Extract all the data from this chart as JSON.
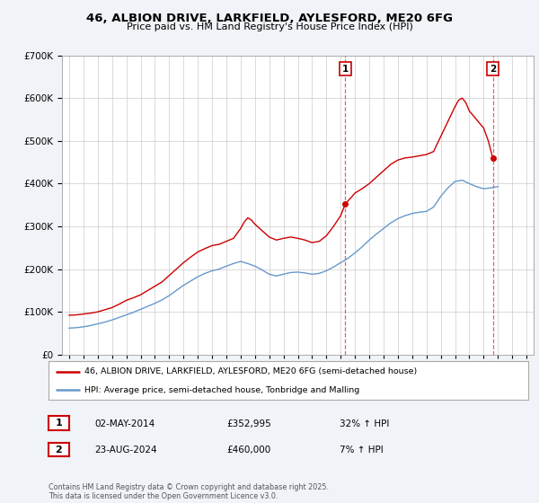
{
  "title": "46, ALBION DRIVE, LARKFIELD, AYLESFORD, ME20 6FG",
  "subtitle": "Price paid vs. HM Land Registry's House Price Index (HPI)",
  "legend_line1": "46, ALBION DRIVE, LARKFIELD, AYLESFORD, ME20 6FG (semi-detached house)",
  "legend_line2": "HPI: Average price, semi-detached house, Tonbridge and Malling",
  "annotation1_label": "1",
  "annotation1_date": "02-MAY-2014",
  "annotation1_price": "£352,995",
  "annotation1_hpi": "32% ↑ HPI",
  "annotation2_label": "2",
  "annotation2_date": "23-AUG-2024",
  "annotation2_price": "£460,000",
  "annotation2_hpi": "7% ↑ HPI",
  "copyright": "Contains HM Land Registry data © Crown copyright and database right 2025.\nThis data is licensed under the Open Government Licence v3.0.",
  "xlim_start": 1994.5,
  "xlim_end": 2027.5,
  "ylim_min": 0,
  "ylim_max": 700000,
  "red_color": "#cc0000",
  "blue_color": "#6699cc",
  "background_color": "#f0f4f8",
  "plot_bg_color": "#ffffff",
  "sale1_year": 2014.33,
  "sale2_year": 2024.64,
  "sale1_price": 352995,
  "sale2_price": 460000,
  "years_red": [
    1995.0,
    1995.5,
    1996.0,
    1996.5,
    1997.0,
    1997.5,
    1998.0,
    1998.5,
    1999.0,
    1999.5,
    2000.0,
    2000.5,
    2001.0,
    2001.5,
    2002.0,
    2002.5,
    2003.0,
    2003.5,
    2004.0,
    2004.5,
    2005.0,
    2005.5,
    2006.0,
    2006.5,
    2007.0,
    2007.25,
    2007.5,
    2007.75,
    2008.0,
    2008.5,
    2009.0,
    2009.5,
    2010.0,
    2010.5,
    2011.0,
    2011.5,
    2012.0,
    2012.5,
    2013.0,
    2013.5,
    2014.0,
    2014.33,
    2014.75,
    2015.0,
    2015.5,
    2016.0,
    2016.5,
    2017.0,
    2017.5,
    2018.0,
    2018.5,
    2019.0,
    2019.5,
    2020.0,
    2020.5,
    2021.0,
    2021.5,
    2022.0,
    2022.25,
    2022.5,
    2022.75,
    2023.0,
    2023.5,
    2024.0,
    2024.33,
    2024.64
  ],
  "red_values": [
    92000,
    93000,
    95000,
    97000,
    100000,
    105000,
    110000,
    118000,
    127000,
    133000,
    140000,
    150000,
    160000,
    170000,
    185000,
    200000,
    215000,
    228000,
    240000,
    248000,
    255000,
    258000,
    265000,
    272000,
    295000,
    310000,
    320000,
    315000,
    305000,
    290000,
    275000,
    268000,
    272000,
    275000,
    272000,
    268000,
    262000,
    265000,
    278000,
    300000,
    325000,
    352995,
    368000,
    378000,
    388000,
    400000,
    415000,
    430000,
    445000,
    455000,
    460000,
    462000,
    465000,
    468000,
    475000,
    510000,
    545000,
    580000,
    595000,
    600000,
    590000,
    570000,
    550000,
    530000,
    500000,
    460000
  ],
  "years_blue": [
    1995.0,
    1995.5,
    1996.0,
    1996.5,
    1997.0,
    1997.5,
    1998.0,
    1998.5,
    1999.0,
    1999.5,
    2000.0,
    2000.5,
    2001.0,
    2001.5,
    2002.0,
    2002.5,
    2003.0,
    2003.5,
    2004.0,
    2004.5,
    2005.0,
    2005.5,
    2006.0,
    2006.5,
    2007.0,
    2007.5,
    2008.0,
    2008.5,
    2009.0,
    2009.5,
    2010.0,
    2010.5,
    2011.0,
    2011.5,
    2012.0,
    2012.5,
    2013.0,
    2013.5,
    2014.0,
    2014.5,
    2015.0,
    2015.5,
    2016.0,
    2016.5,
    2017.0,
    2017.5,
    2018.0,
    2018.5,
    2019.0,
    2019.5,
    2020.0,
    2020.5,
    2021.0,
    2021.5,
    2022.0,
    2022.5,
    2023.0,
    2023.5,
    2024.0,
    2024.5,
    2025.0
  ],
  "blue_values": [
    62000,
    63000,
    65000,
    68000,
    72000,
    76000,
    81000,
    87000,
    93000,
    99000,
    106000,
    113000,
    120000,
    128000,
    138000,
    150000,
    162000,
    172000,
    182000,
    190000,
    196000,
    200000,
    207000,
    213000,
    218000,
    213000,
    207000,
    198000,
    188000,
    184000,
    188000,
    192000,
    193000,
    191000,
    188000,
    190000,
    196000,
    205000,
    215000,
    225000,
    238000,
    252000,
    268000,
    282000,
    295000,
    308000,
    318000,
    325000,
    330000,
    333000,
    335000,
    345000,
    370000,
    390000,
    405000,
    408000,
    400000,
    393000,
    388000,
    390000,
    393000
  ]
}
